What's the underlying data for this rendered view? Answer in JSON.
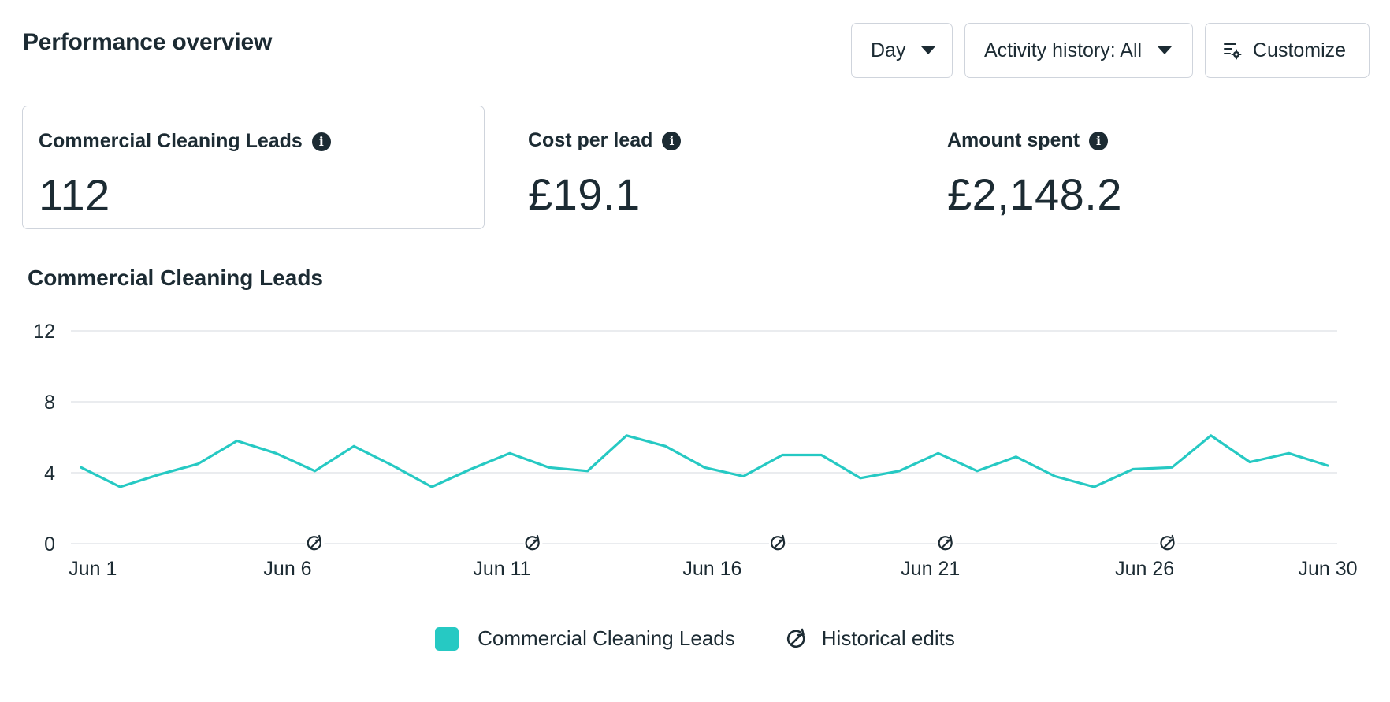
{
  "header": {
    "title": "Performance overview",
    "day_label": "Day",
    "activity_label": "Activity history: All",
    "customize_label": "Customize"
  },
  "metrics": [
    {
      "label": "Commercial Cleaning Leads",
      "value": "112"
    },
    {
      "label": "Cost per lead",
      "value": "£19.1"
    },
    {
      "label": "Amount spent",
      "value": "£2,148.2"
    }
  ],
  "chart_title": "Commercial Cleaning Leads",
  "legend": {
    "series_label": "Commercial Cleaning Leads",
    "edits_label": "Historical edits"
  },
  "colors": {
    "series": "#26c9c3",
    "text": "#1c2b33",
    "border": "#cfd4dc",
    "grid": "#e3e6ea"
  },
  "chart_data": {
    "type": "line",
    "series": [
      {
        "name": "Commercial Cleaning Leads",
        "x": [
          1,
          2,
          3,
          4,
          5,
          6,
          7,
          8,
          9,
          10,
          11,
          12,
          13,
          14,
          15,
          16,
          17,
          18,
          19,
          20,
          21,
          22,
          23,
          24,
          25,
          26,
          27,
          28,
          29,
          30,
          31,
          32,
          33
        ],
        "values": [
          4.3,
          3.2,
          3.9,
          4.5,
          5.8,
          5.1,
          4.1,
          5.5,
          4.4,
          3.2,
          4.2,
          5.1,
          4.3,
          4.1,
          6.1,
          5.5,
          4.3,
          3.8,
          5.0,
          5.0,
          3.7,
          4.1,
          5.1,
          4.1,
          4.9,
          3.8,
          3.2,
          4.2,
          4.3,
          6.1,
          4.6,
          5.1,
          4.4
        ]
      }
    ],
    "x_tick_labels": [
      {
        "x": 1.3,
        "label": "Jun 1"
      },
      {
        "x": 6.3,
        "label": "Jun 6"
      },
      {
        "x": 11.8,
        "label": "Jun 11"
      },
      {
        "x": 17.2,
        "label": "Jun 16"
      },
      {
        "x": 22.8,
        "label": "Jun 21"
      },
      {
        "x": 28.3,
        "label": "Jun 26"
      },
      {
        "x": 33,
        "label": "Jun 30"
      }
    ],
    "historical_edits_x": [
      7.0,
      12.6,
      18.9,
      23.2,
      28.9
    ],
    "yticks": [
      0,
      4,
      8,
      12
    ],
    "ylim": [
      0,
      12
    ],
    "xlim": [
      1,
      33
    ],
    "grid": true,
    "legend": "bottom-center"
  }
}
